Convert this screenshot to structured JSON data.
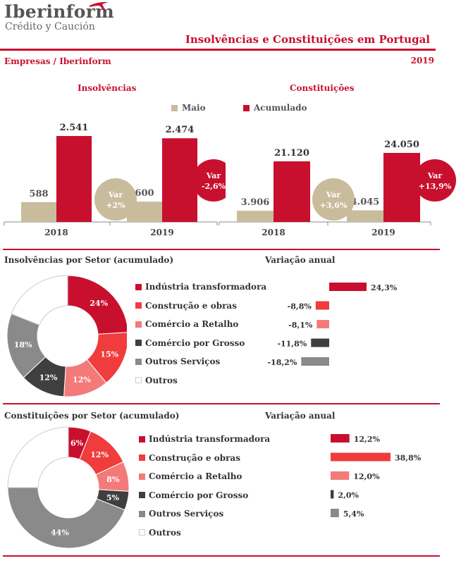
{
  "header": {
    "logo_main": "Iberinform",
    "logo_sub": "Crédito y Caución",
    "title": "Insolvências e Constituições em  Portugal",
    "subtitle": "Empresas / Iberinform",
    "year": "2019"
  },
  "colors": {
    "brand": "#c8102e",
    "maio": "#c9bc9c",
    "acumulado": "#c8102e",
    "industria": "#c8102e",
    "construcao": "#f03c3c",
    "comercio_retalho": "#f47a7a",
    "comercio_grosso": "#3f3f3f",
    "outros_servicos": "#8a8a8a",
    "outros": "#ffffff"
  },
  "legend": {
    "maio": "Maio",
    "acumulado": "Acumulado"
  },
  "chart_data": [
    {
      "id": "insolvencias",
      "type": "bar",
      "title": "Insolvências",
      "categories": [
        "2018",
        "2019"
      ],
      "series": [
        {
          "name": "Maio",
          "values": [
            588,
            600
          ],
          "labels": [
            "588",
            "600"
          ]
        },
        {
          "name": "Acumulado",
          "values": [
            2541,
            2474
          ],
          "labels": [
            "2.541",
            "2.474"
          ]
        }
      ],
      "var_maio": {
        "label": "Var",
        "value": "+2%"
      },
      "var_acumulado": {
        "label": "Var",
        "value": "-2,6%"
      }
    },
    {
      "id": "constituicoes",
      "type": "bar",
      "title": "Constituições",
      "categories": [
        "2018",
        "2019"
      ],
      "series": [
        {
          "name": "Maio",
          "values": [
            3906,
            4045
          ],
          "labels": [
            "3.906",
            "4.045"
          ]
        },
        {
          "name": "Acumulado",
          "values": [
            21120,
            24050
          ],
          "labels": [
            "21.120",
            "24.050"
          ]
        }
      ],
      "var_maio": {
        "label": "Var",
        "value": "+3,6%"
      },
      "var_acumulado": {
        "label": "Var",
        "value": "+13,9%"
      }
    },
    {
      "id": "insolv_setor",
      "type": "pie",
      "title": "Insolvências por Setor (acumulado)",
      "slices": [
        {
          "key": "industria",
          "name": "Indústria transformadora",
          "value": 24,
          "label": "24%"
        },
        {
          "key": "construcao",
          "name": "Construção e obras",
          "value": 15,
          "label": "15%"
        },
        {
          "key": "comercio_retalho",
          "name": "Comércio a Retalho",
          "value": 12,
          "label": "12%"
        },
        {
          "key": "comercio_grosso",
          "name": "Comércio por Grosso",
          "value": 12,
          "label": "12%"
        },
        {
          "key": "outros_servicos",
          "name": "Outros Serviços",
          "value": 18,
          "label": "18%"
        },
        {
          "key": "outros",
          "name": "Outros",
          "value": 19,
          "label": ""
        }
      ]
    },
    {
      "id": "insolv_var",
      "type": "bar",
      "title": "Variação anual",
      "categories": [
        "Indústria transformadora",
        "Construção e obras",
        "Comércio a Retalho",
        "Comércio por Grosso",
        "Outros Serviços"
      ],
      "values": [
        24.3,
        -8.8,
        -8.1,
        -11.8,
        -18.2
      ],
      "labels": [
        "24,3%",
        "-8,8%",
        "-8,1%",
        "-11,8%",
        "-18,2%"
      ]
    },
    {
      "id": "const_setor",
      "type": "pie",
      "title": "Constituições por Setor (acumulado)",
      "slices": [
        {
          "key": "industria",
          "name": "Indústria transformadora",
          "value": 6,
          "label": "6%"
        },
        {
          "key": "construcao",
          "name": "Construção e obras",
          "value": 12,
          "label": "12%"
        },
        {
          "key": "comercio_retalho",
          "name": "Comércio a Retalho",
          "value": 8,
          "label": "8%"
        },
        {
          "key": "comercio_grosso",
          "name": "Comércio por Grosso",
          "value": 5,
          "label": "5%"
        },
        {
          "key": "outros_servicos",
          "name": "Outros Serviços",
          "value": 44,
          "label": "44%"
        },
        {
          "key": "outros",
          "name": "Outros",
          "value": 25,
          "label": ""
        }
      ]
    },
    {
      "id": "const_var",
      "type": "bar",
      "title": "Variação anual",
      "categories": [
        "Indústria transformadora",
        "Construção e obras",
        "Comércio a Retalho",
        "Comércio por Grosso",
        "Outros Serviços"
      ],
      "values": [
        12.2,
        38.8,
        12.0,
        2.0,
        5.4
      ],
      "labels": [
        "12,2%",
        "38,8%",
        "12,0%",
        "2,0%",
        "5,4%"
      ]
    }
  ]
}
